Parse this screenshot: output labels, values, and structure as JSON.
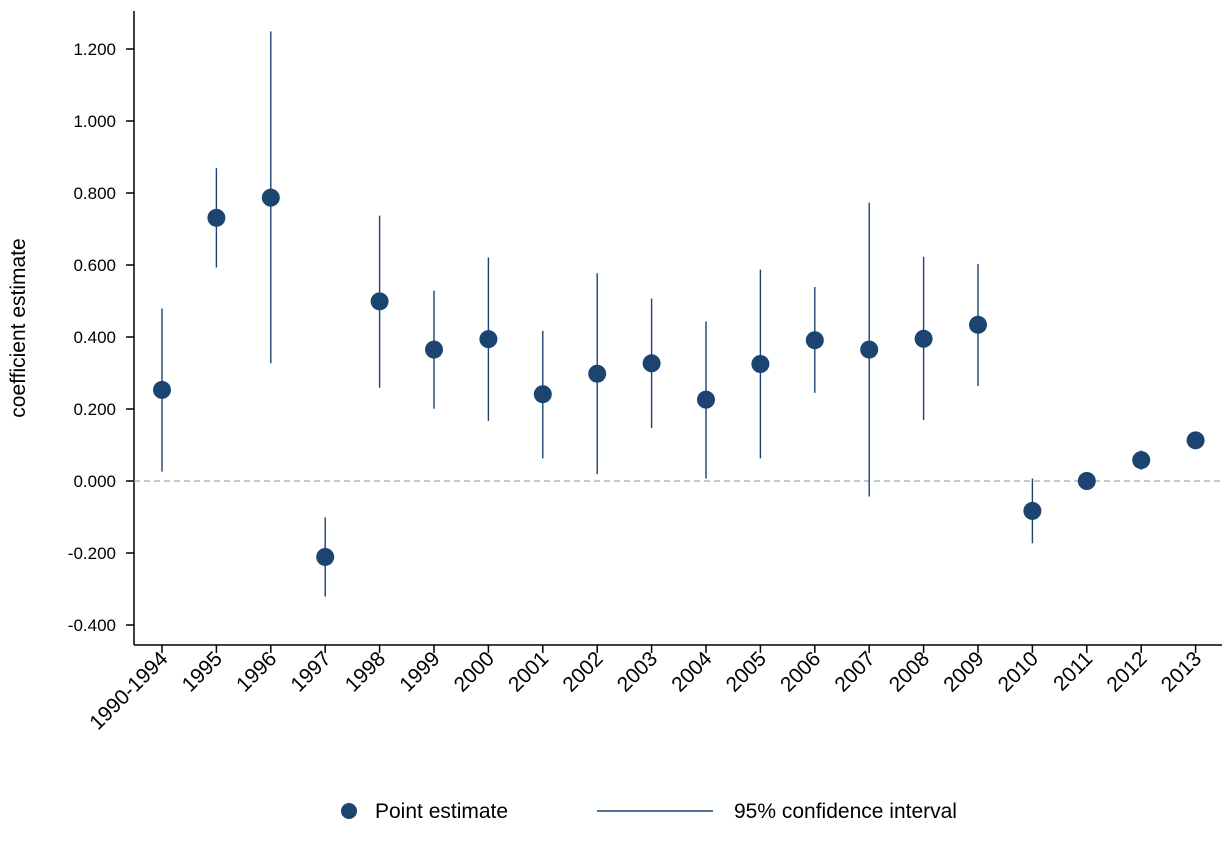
{
  "chart_data": {
    "type": "scatter",
    "ylabel": "coefficient estimate",
    "ylim": [
      -0.45,
      1.31
    ],
    "yticks": [
      -0.4,
      -0.2,
      0.0,
      0.2,
      0.4,
      0.6,
      0.8,
      1.0,
      1.2
    ],
    "ytick_labels": [
      "-0.400",
      "-0.200",
      "0.000",
      "0.200",
      "0.400",
      "0.600",
      "0.800",
      "1.000",
      "1.200"
    ],
    "reference_line": 0.0,
    "categories": [
      "1990-1994",
      "1995",
      "1996",
      "1997",
      "1998",
      "1999",
      "2000",
      "2001",
      "2002",
      "2003",
      "2004",
      "2005",
      "2006",
      "2007",
      "2008",
      "2009",
      "2010",
      "2011",
      "2012",
      "2013"
    ],
    "series": [
      {
        "name": "Point estimate",
        "values": [
          0.253,
          0.731,
          0.787,
          -0.211,
          0.499,
          0.365,
          0.394,
          0.241,
          0.298,
          0.327,
          0.226,
          0.325,
          0.391,
          0.365,
          0.395,
          0.434,
          -0.083,
          0.0,
          0.058,
          0.113
        ]
      },
      {
        "name": "95% confidence interval",
        "lower": [
          0.026,
          0.593,
          0.327,
          -0.321,
          0.259,
          0.201,
          0.167,
          0.063,
          0.019,
          0.147,
          0.007,
          0.063,
          0.245,
          -0.043,
          0.169,
          0.264,
          -0.173,
          0.0,
          0.031,
          0.113
        ],
        "upper": [
          0.479,
          0.869,
          1.249,
          -0.101,
          0.737,
          0.529,
          0.621,
          0.417,
          0.577,
          0.507,
          0.443,
          0.587,
          0.539,
          0.773,
          0.623,
          0.603,
          0.007,
          0.0,
          0.085,
          0.113
        ]
      }
    ],
    "legend_position": "bottom",
    "colors": {
      "marker": "#1b4470",
      "ci_line": "#1b4470",
      "reference": "#a6a6a6"
    }
  }
}
